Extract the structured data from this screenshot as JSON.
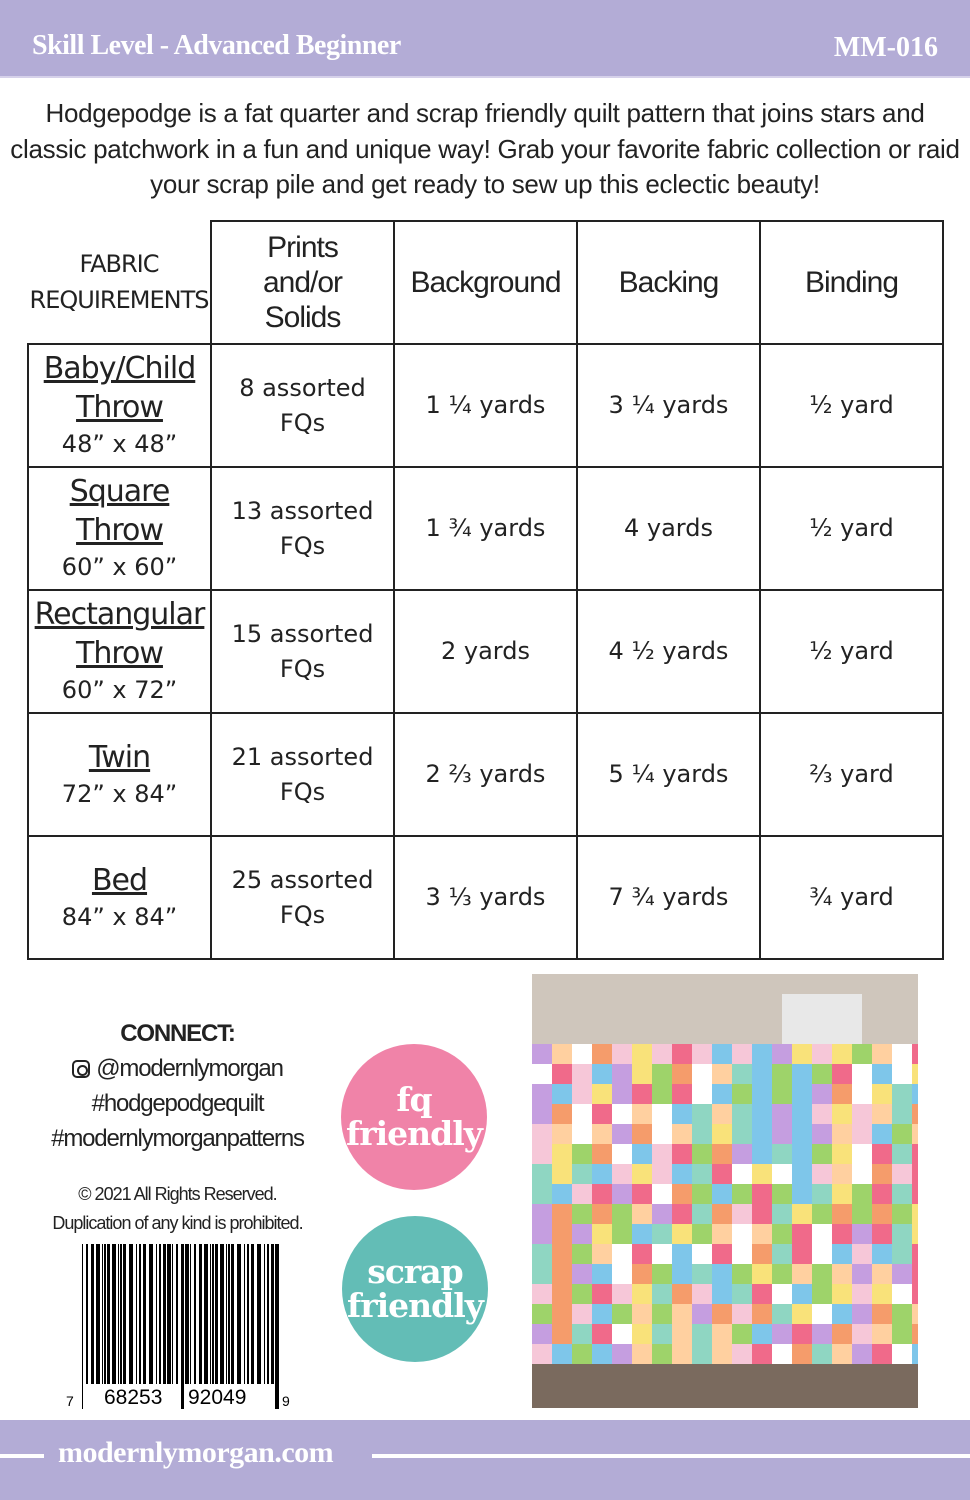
{
  "header": {
    "skill_level": "Skill Level - Advanced Beginner",
    "pattern_code": "MM-016"
  },
  "intro": "Hodgepodge is a fat quarter and scrap friendly quilt pattern that joins stars and classic patchwork in a fun and unique way!  Grab your favorite fabric collection or raid your scrap pile and get ready to sew up this eclectic beauty!",
  "table": {
    "corner": [
      "FABRIC",
      "REQUIREMENTS"
    ],
    "headers": [
      "Prints and/or Solids",
      "Background",
      "Backing",
      "Binding"
    ],
    "rows": [
      {
        "name": "Baby/Child Throw",
        "size": "48” x 48”",
        "prints": "8 assorted FQs",
        "background": "1 ¼ yards",
        "backing": "3 ¼ yards",
        "binding": "½ yard"
      },
      {
        "name": "Square Throw",
        "size": "60” x 60”",
        "prints": "13 assorted FQs",
        "background": "1 ¾ yards",
        "backing": "4 yards",
        "binding": "½ yard"
      },
      {
        "name": "Rectangular Throw",
        "size": "60” x 72”",
        "prints": "15 assorted FQs",
        "background": "2 yards",
        "backing": "4 ½ yards",
        "binding": "½ yard"
      },
      {
        "name": "Twin",
        "size": "72” x 84”",
        "prints": "21 assorted FQs",
        "background": "2 ⅔ yards",
        "backing": "5 ¼ yards",
        "binding": "⅔ yard"
      },
      {
        "name": "Bed",
        "size": "84” x 84”",
        "prints": "25 assorted FQs",
        "background": "3 ⅓ yards",
        "backing": "7 ¾ yards",
        "binding": "¾ yard"
      }
    ]
  },
  "connect": {
    "title": "CONNECT:",
    "instagram": "@modernlymorgan",
    "tags": [
      "#hodgepodgequilt",
      "#modernlymorganpatterns"
    ],
    "icon": "instagram-icon"
  },
  "copyright": [
    "© 2021  All Rights Reserved.",
    "Duplication of any kind is prohibited."
  ],
  "barcode": {
    "digits": [
      "7",
      "68253",
      "92049",
      "9"
    ]
  },
  "badges": [
    {
      "lines": [
        "fq",
        "friendly"
      ],
      "color": "#f083a8"
    },
    {
      "lines": [
        "scrap",
        "friendly"
      ],
      "color": "#63bdb6"
    }
  ],
  "footer": {
    "url": "modernlymorgan.com"
  },
  "colors": {
    "brand": "#b3acd6"
  }
}
